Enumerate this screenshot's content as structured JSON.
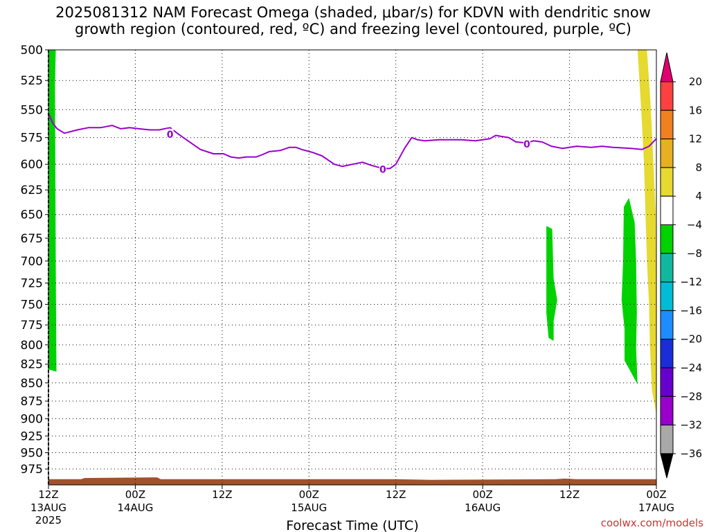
{
  "chart_data": {
    "type": "contour",
    "title_line1": "2025081312 NAM Forecast Omega (shaded, μbar/s) for KDVN with dendritic snow",
    "title_line2": "growth region (contoured, red, ºC) and freezing level (contoured, purple, ºC)",
    "xlabel": "Forecast Time (UTC)",
    "credit": "coolwx.com/models",
    "credit_color": "#cc3333",
    "yaxis": {
      "scale": "pressure-log",
      "reversed": true,
      "ylim": [
        500,
        1000
      ],
      "ticks": [
        500,
        525,
        550,
        575,
        600,
        625,
        650,
        675,
        700,
        725,
        750,
        775,
        800,
        825,
        850,
        875,
        900,
        925,
        950,
        975
      ]
    },
    "xaxis": {
      "xlim": [
        0,
        84
      ],
      "ticks": [
        {
          "h": 0,
          "top": "12Z",
          "mid": "13AUG",
          "bot": "2025"
        },
        {
          "h": 12,
          "top": "00Z",
          "mid": "14AUG",
          "bot": ""
        },
        {
          "h": 24,
          "top": "12Z",
          "mid": "",
          "bot": ""
        },
        {
          "h": 36,
          "top": "00Z",
          "mid": "15AUG",
          "bot": ""
        },
        {
          "h": 48,
          "top": "12Z",
          "mid": "",
          "bot": ""
        },
        {
          "h": 60,
          "top": "00Z",
          "mid": "16AUG",
          "bot": ""
        },
        {
          "h": 72,
          "top": "12Z",
          "mid": "",
          "bot": ""
        },
        {
          "h": 84,
          "top": "00Z",
          "mid": "17AUG",
          "bot": ""
        }
      ]
    },
    "grid": true,
    "freezing_level": {
      "label": "0",
      "color": "#9900cc",
      "label_points": [
        [
          16.8,
          572
        ],
        [
          46.2,
          605
        ],
        [
          66.1,
          581
        ]
      ],
      "points": [
        [
          0,
          553
        ],
        [
          0.6,
          562
        ],
        [
          1.2,
          567
        ],
        [
          2.2,
          571
        ],
        [
          4,
          568
        ],
        [
          5.5,
          566
        ],
        [
          7.2,
          566
        ],
        [
          8,
          565
        ],
        [
          8.8,
          564
        ],
        [
          10,
          567
        ],
        [
          11.2,
          566
        ],
        [
          12.5,
          567
        ],
        [
          14,
          568
        ],
        [
          15.3,
          568
        ],
        [
          16.8,
          566
        ],
        [
          18,
          572
        ],
        [
          19.5,
          579
        ],
        [
          21,
          586
        ],
        [
          22.8,
          590
        ],
        [
          24.2,
          590
        ],
        [
          25.2,
          593
        ],
        [
          26.3,
          594
        ],
        [
          27.3,
          593
        ],
        [
          28.7,
          593
        ],
        [
          29.5,
          591
        ],
        [
          30.5,
          588
        ],
        [
          32,
          587
        ],
        [
          33.3,
          584
        ],
        [
          34.2,
          584
        ],
        [
          35,
          586
        ],
        [
          36.6,
          589
        ],
        [
          37.8,
          592
        ],
        [
          39.5,
          600
        ],
        [
          40.6,
          602
        ],
        [
          42,
          600
        ],
        [
          43.4,
          598
        ],
        [
          44.6,
          601
        ],
        [
          46.2,
          604
        ],
        [
          47.2,
          604
        ],
        [
          48,
          600
        ],
        [
          49.2,
          585
        ],
        [
          50.2,
          575
        ],
        [
          51,
          577
        ],
        [
          52,
          578
        ],
        [
          54,
          577
        ],
        [
          57,
          577
        ],
        [
          59,
          578
        ],
        [
          61,
          576
        ],
        [
          61.8,
          573
        ],
        [
          62.6,
          574
        ],
        [
          63.6,
          575
        ],
        [
          64.6,
          579
        ],
        [
          66.1,
          580
        ],
        [
          67,
          578
        ],
        [
          68.2,
          579
        ],
        [
          69.5,
          583
        ],
        [
          71,
          585
        ],
        [
          73,
          583
        ],
        [
          75,
          584
        ],
        [
          76.5,
          583
        ],
        [
          78,
          584
        ],
        [
          80.5,
          585
        ],
        [
          82,
          586
        ],
        [
          83,
          583
        ],
        [
          84,
          576
        ]
      ]
    },
    "colorbar": {
      "unit": "μbar/s",
      "levels": [
        -36,
        -32,
        -28,
        -24,
        -20,
        -16,
        -12,
        -8,
        -4,
        4,
        8,
        12,
        16,
        20
      ],
      "colors": [
        "#000000",
        "#a9a9a9",
        "#9900cc",
        "#6600cc",
        "#1a2dd6",
        "#1e8cff",
        "#00bcd4",
        "#11b8a0",
        "#00d200",
        "#ffffff",
        "#e6d930",
        "#e6b020",
        "#f08020",
        "#ff4040",
        "#e0006f"
      ],
      "labels": [
        "20",
        "16",
        "12",
        "8",
        "4",
        "−4",
        "−8",
        "−12",
        "−16",
        "−20",
        "−24",
        "−28",
        "−32",
        "−36"
      ]
    },
    "shaded_regions": [
      {
        "omega_bin": "-8 to -4",
        "color": "#00d200",
        "points": [
          [
            0.05,
            500
          ],
          [
            1,
            500
          ],
          [
            0.9,
            530
          ],
          [
            0.95,
            600
          ],
          [
            1,
            700
          ],
          [
            1.1,
            835
          ],
          [
            0.05,
            832
          ]
        ]
      },
      {
        "omega_bin": "-8 to -4",
        "color": "#00d200",
        "points": [
          [
            68.8,
            662
          ],
          [
            69.6,
            665
          ],
          [
            69.8,
            720
          ],
          [
            70.3,
            745
          ],
          [
            69.8,
            770
          ],
          [
            69.8,
            795
          ],
          [
            69.1,
            791
          ],
          [
            68.8,
            760
          ]
        ]
      },
      {
        "omega_bin": "-8 to -4",
        "color": "#00d200",
        "points": [
          [
            79.5,
            642
          ],
          [
            80.2,
            633
          ],
          [
            81,
            658
          ],
          [
            81.2,
            700
          ],
          [
            81.3,
            760
          ],
          [
            81.2,
            805
          ],
          [
            81.4,
            852
          ],
          [
            79.6,
            820
          ],
          [
            79.6,
            780
          ],
          [
            79.2,
            745
          ],
          [
            79.4,
            700
          ]
        ]
      },
      {
        "omega_bin": "4 to 8",
        "color": "#e6d930",
        "points": [
          [
            81.4,
            500
          ],
          [
            82.7,
            500
          ],
          [
            83.2,
            545
          ],
          [
            83.6,
            600
          ],
          [
            83.9,
            650
          ],
          [
            84,
            760
          ],
          [
            84,
            893
          ],
          [
            83.4,
            860
          ],
          [
            83.1,
            800
          ],
          [
            83,
            752
          ],
          [
            82.7,
            700
          ],
          [
            82.5,
            650
          ],
          [
            82.3,
            600
          ],
          [
            81.9,
            550
          ]
        ]
      }
    ],
    "terrain": {
      "color": "#a0522d",
      "top_pressure": [
        [
          0,
          991
        ],
        [
          4.5,
          991
        ],
        [
          5,
          989
        ],
        [
          15,
          988
        ],
        [
          15.5,
          991
        ],
        [
          48,
          991
        ],
        [
          53,
          992
        ],
        [
          70,
          991
        ],
        [
          71.3,
          990
        ],
        [
          73,
          991
        ],
        [
          78,
          991
        ],
        [
          84,
          991
        ]
      ]
    }
  }
}
